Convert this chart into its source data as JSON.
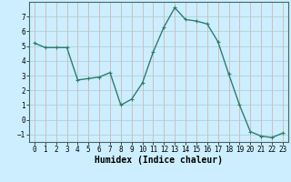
{
  "x": [
    0,
    1,
    2,
    3,
    4,
    5,
    6,
    7,
    8,
    9,
    10,
    11,
    12,
    13,
    14,
    15,
    16,
    17,
    18,
    19,
    20,
    21,
    22,
    23
  ],
  "y": [
    5.2,
    4.9,
    4.9,
    4.9,
    2.7,
    2.8,
    2.9,
    3.2,
    1.0,
    1.4,
    2.5,
    4.6,
    6.3,
    7.6,
    6.8,
    6.7,
    6.5,
    5.3,
    3.1,
    1.0,
    -0.8,
    -1.1,
    -1.2,
    -0.9
  ],
  "line_color": "#2e7d6e",
  "marker": "+",
  "marker_size": 3,
  "bg_color": "#cceeff",
  "grid_color_x": "#d4aaaa",
  "grid_color_y": "#aacccc",
  "xlabel": "Humidex (Indice chaleur)",
  "xlim": [
    -0.5,
    23.5
  ],
  "ylim": [
    -1.5,
    8.0
  ],
  "yticks": [
    -1,
    0,
    1,
    2,
    3,
    4,
    5,
    6,
    7
  ],
  "xticks": [
    0,
    1,
    2,
    3,
    4,
    5,
    6,
    7,
    8,
    9,
    10,
    11,
    12,
    13,
    14,
    15,
    16,
    17,
    18,
    19,
    20,
    21,
    22,
    23
  ],
  "tick_label_fontsize": 5.5,
  "xlabel_fontsize": 7.0,
  "line_width": 1.0
}
